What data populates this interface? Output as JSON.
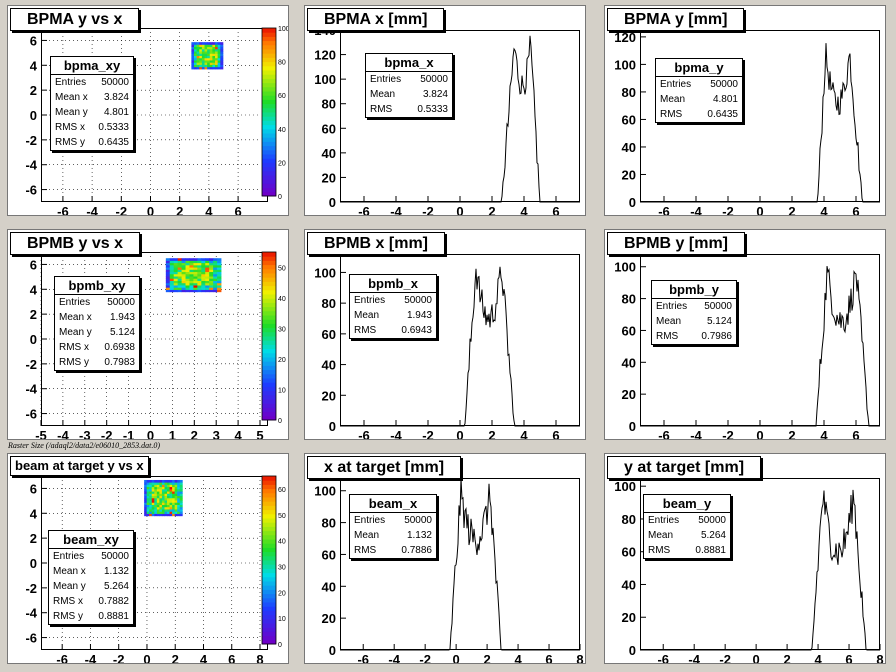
{
  "caption": "Raster Size (/adaql2/data2/e06010_2853.dat.0)",
  "chart_data": [
    {
      "id": "p1",
      "type": "heatmap",
      "title": "BPMA y vs x",
      "histname": "bpma_xy",
      "xlim": [
        -7.5,
        7.5
      ],
      "ylim": [
        -7,
        7
      ],
      "xticks": [
        -6,
        -4,
        -2,
        0,
        2,
        4,
        6
      ],
      "yticks": [
        -6,
        -4,
        -2,
        0,
        2,
        4,
        6
      ],
      "zmax": 100,
      "zticks": [
        0,
        20,
        40,
        60,
        80,
        100
      ],
      "grid": true,
      "blob": {
        "x": [
          2.8,
          4.8
        ],
        "y": [
          3.7,
          5.8
        ]
      },
      "stats": [
        [
          "Entries",
          "50000"
        ],
        [
          "Mean x",
          "3.824"
        ],
        [
          "Mean y",
          "4.801"
        ],
        [
          "RMS x",
          "0.5333"
        ],
        [
          "RMS y",
          "0.6435"
        ]
      ]
    },
    {
      "id": "p2",
      "type": "line",
      "title": "BPMA x [mm]",
      "histname": "bpma_x",
      "xlim": [
        -7.5,
        7.5
      ],
      "ylim": [
        0,
        140
      ],
      "xticks": [
        -6,
        -4,
        -2,
        0,
        2,
        4,
        6
      ],
      "yticks": [
        0,
        20,
        40,
        60,
        80,
        100,
        120,
        140
      ],
      "shape": {
        "start": 2.6,
        "end": 5.0,
        "peakL": 3.4,
        "peakR": 4.4,
        "hpeak": 128,
        "hdip": 95,
        "noise": 11
      },
      "stats": [
        [
          "Entries",
          "50000"
        ],
        [
          "Mean",
          "3.824"
        ],
        [
          "RMS",
          "0.5333"
        ]
      ]
    },
    {
      "id": "p3",
      "type": "line",
      "title": "BPMA y [mm]",
      "histname": "bpma_y",
      "xlim": [
        -7.5,
        7.5
      ],
      "ylim": [
        0,
        125
      ],
      "xticks": [
        -6,
        -4,
        -2,
        0,
        2,
        4,
        6
      ],
      "yticks": [
        0,
        20,
        40,
        60,
        80,
        100,
        120
      ],
      "shape": {
        "start": 3.6,
        "end": 6.4,
        "peakL": 4.1,
        "peakR": 5.6,
        "hpeak": 108,
        "hdip": 72,
        "noise": 10
      },
      "stats": [
        [
          "Entries",
          "50000"
        ],
        [
          "Mean",
          "4.801"
        ],
        [
          "RMS",
          "0.6435"
        ]
      ]
    },
    {
      "id": "p4",
      "type": "heatmap",
      "title": "BPMB y vs x",
      "histname": "bpmb_xy",
      "xlim": [
        -5,
        5
      ],
      "ylim": [
        -7,
        7
      ],
      "xticks": [
        -5,
        -4,
        -3,
        -2,
        -1,
        0,
        1,
        2,
        3,
        4,
        5
      ],
      "yticks": [
        -6,
        -4,
        -2,
        0,
        2,
        4,
        6
      ],
      "zmax": 55,
      "zticks": [
        0,
        10,
        20,
        30,
        40,
        50
      ],
      "grid": true,
      "blob": {
        "x": [
          0.7,
          3.2
        ],
        "y": [
          3.8,
          6.4
        ]
      },
      "stats": [
        [
          "Entries",
          "50000"
        ],
        [
          "Mean x",
          "1.943"
        ],
        [
          "Mean y",
          "5.124"
        ],
        [
          "RMS x",
          "0.6938"
        ],
        [
          "RMS y",
          "0.7983"
        ]
      ]
    },
    {
      "id": "p5",
      "type": "line",
      "title": "BPMB x [mm]",
      "histname": "bpmb_x",
      "xlim": [
        -7.5,
        7.5
      ],
      "ylim": [
        0,
        112
      ],
      "xticks": [
        -6,
        -4,
        -2,
        0,
        2,
        4,
        6
      ],
      "yticks": [
        0,
        20,
        40,
        60,
        80,
        100
      ],
      "shape": {
        "start": 0.3,
        "end": 3.4,
        "peakL": 1.0,
        "peakR": 2.6,
        "hpeak": 103,
        "hdip": 70,
        "noise": 10
      },
      "stats": [
        [
          "Entries",
          "50000"
        ],
        [
          "Mean",
          "1.943"
        ],
        [
          "RMS",
          "0.6943"
        ]
      ]
    },
    {
      "id": "p6",
      "type": "line",
      "title": "BPMB y [mm]",
      "histname": "bpmb_y",
      "xlim": [
        -7.5,
        7.5
      ],
      "ylim": [
        0,
        108
      ],
      "xticks": [
        -6,
        -4,
        -2,
        0,
        2,
        4,
        6
      ],
      "yticks": [
        0,
        20,
        40,
        60,
        80,
        100
      ],
      "shape": {
        "start": 3.5,
        "end": 6.8,
        "peakL": 4.2,
        "peakR": 6.0,
        "hpeak": 97,
        "hdip": 66,
        "noise": 10
      },
      "stats": [
        [
          "Entries",
          "50000"
        ],
        [
          "Mean",
          "5.124"
        ],
        [
          "RMS",
          "0.7986"
        ]
      ]
    },
    {
      "id": "p7",
      "type": "heatmap",
      "title": "beam at target y vs x",
      "histname": "beam_xy",
      "xlim": [
        -7.5,
        8
      ],
      "ylim": [
        -7,
        7
      ],
      "xticks": [
        -6,
        -4,
        -2,
        0,
        2,
        4,
        6,
        8
      ],
      "yticks": [
        -6,
        -4,
        -2,
        0,
        2,
        4,
        6
      ],
      "zmax": 65,
      "zticks": [
        0,
        10,
        20,
        30,
        40,
        50,
        60
      ],
      "grid": true,
      "blob": {
        "x": [
          -0.2,
          2.5
        ],
        "y": [
          3.8,
          6.6
        ]
      },
      "stats": [
        [
          "Entries",
          "50000"
        ],
        [
          "Mean x",
          "1.132"
        ],
        [
          "Mean y",
          "5.264"
        ],
        [
          "RMS x",
          "0.7882"
        ],
        [
          "RMS y",
          "0.8881"
        ]
      ]
    },
    {
      "id": "p8",
      "type": "line",
      "title": "x at target [mm]",
      "histname": "beam_x",
      "xlim": [
        -7.5,
        8
      ],
      "ylim": [
        0,
        108
      ],
      "xticks": [
        -6,
        -4,
        -2,
        0,
        2,
        4,
        6,
        8
      ],
      "yticks": [
        0,
        20,
        40,
        60,
        80,
        100
      ],
      "shape": {
        "start": -0.4,
        "end": 2.9,
        "peakL": 0.3,
        "peakR": 2.2,
        "hpeak": 98,
        "hdip": 70,
        "noise": 11
      },
      "stats": [
        [
          "Entries",
          "50000"
        ],
        [
          "Mean",
          "1.132"
        ],
        [
          "RMS",
          "0.7886"
        ]
      ]
    },
    {
      "id": "p9",
      "type": "line",
      "title": "y at target [mm]",
      "histname": "beam_y",
      "xlim": [
        -7.5,
        8
      ],
      "ylim": [
        0,
        105
      ],
      "xticks": [
        -6,
        -4,
        -2,
        0,
        2,
        4,
        6,
        8
      ],
      "yticks": [
        0,
        20,
        40,
        60,
        80,
        100
      ],
      "shape": {
        "start": 3.6,
        "end": 7.1,
        "peakL": 4.3,
        "peakR": 6.3,
        "hpeak": 95,
        "hdip": 60,
        "noise": 11
      },
      "stats": [
        [
          "Entries",
          "50000"
        ],
        [
          "Mean",
          "5.264"
        ],
        [
          "RMS",
          "0.8881"
        ]
      ]
    }
  ]
}
